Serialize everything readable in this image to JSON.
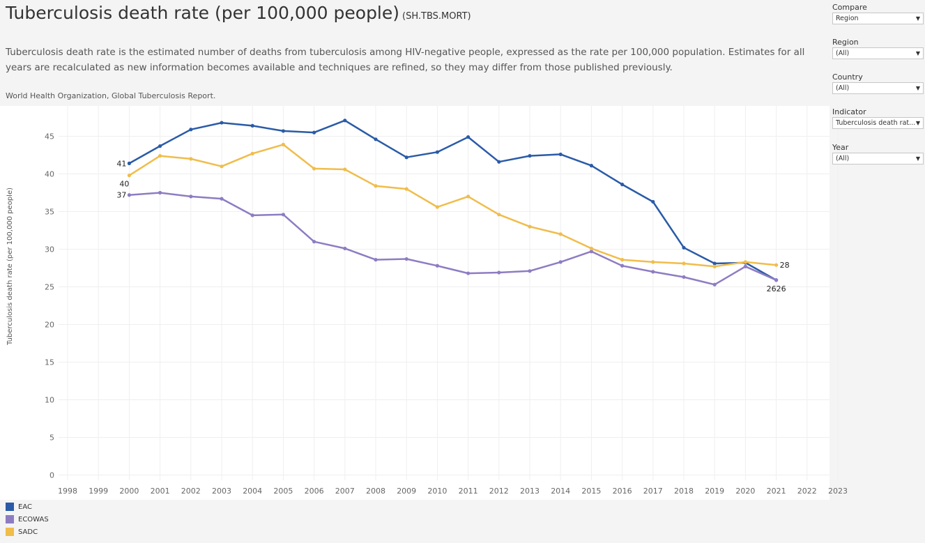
{
  "header": {
    "title": "Tuberculosis death rate (per 100,000 people)",
    "code": "(SH.TBS.MORT)",
    "description": "Tuberculosis death rate is the estimated number of deaths from tuberculosis among HIV-negative people, expressed as the rate per 100,000 population. Estimates for all years are recalculated as new information becomes available and techniques are refined, so they may differ from those published previously.",
    "source": "World Health Organization, Global Tuberculosis Report."
  },
  "filters": [
    {
      "label": "Compare",
      "value": "Region"
    },
    {
      "label": "Region",
      "value": "(All)"
    },
    {
      "label": "Country",
      "value": "(All)"
    },
    {
      "label": "Indicator",
      "value": "Tuberculosis death rat..."
    },
    {
      "label": "Year",
      "value": "(All)"
    }
  ],
  "chart_data": {
    "type": "line",
    "ylabel": "Tuberculosis death rate (per 100,000 people)",
    "xlabel": "",
    "xlim": [
      1998,
      2023
    ],
    "ylim": [
      0,
      48
    ],
    "xticks": [
      1998,
      1999,
      2000,
      2001,
      2002,
      2003,
      2004,
      2005,
      2006,
      2007,
      2008,
      2009,
      2010,
      2011,
      2012,
      2013,
      2014,
      2015,
      2016,
      2017,
      2018,
      2019,
      2020,
      2021,
      2022,
      2023
    ],
    "yticks": [
      0,
      5,
      10,
      15,
      20,
      25,
      30,
      35,
      40,
      45
    ],
    "grid": true,
    "legend": "bottom-left",
    "x": [
      2000,
      2001,
      2002,
      2003,
      2004,
      2005,
      2006,
      2007,
      2008,
      2009,
      2010,
      2011,
      2012,
      2013,
      2014,
      2015,
      2016,
      2017,
      2018,
      2019,
      2020,
      2021
    ],
    "series": [
      {
        "name": "EAC",
        "color": "#2a5ba7",
        "values": [
          41.4,
          43.7,
          45.9,
          46.8,
          46.4,
          45.7,
          45.5,
          47.1,
          44.6,
          42.2,
          42.9,
          44.9,
          41.6,
          42.4,
          42.6,
          41.1,
          38.6,
          36.3,
          30.2,
          28.1,
          28.2,
          25.9
        ],
        "labels": [
          {
            "x": 2000,
            "text": "41",
            "pos": "left"
          },
          {
            "x": 2021,
            "text": "26",
            "pos": "below-left"
          }
        ]
      },
      {
        "name": "ECOWAS",
        "color": "#8e7cc3",
        "values": [
          37.2,
          37.5,
          37.0,
          36.7,
          34.5,
          34.6,
          31.0,
          30.1,
          28.6,
          28.7,
          27.8,
          26.8,
          26.9,
          27.1,
          28.3,
          29.7,
          27.8,
          27.0,
          26.3,
          25.3,
          27.7,
          25.9
        ],
        "labels": [
          {
            "x": 2000,
            "text": "37",
            "pos": "left"
          },
          {
            "x": 2021,
            "text": "26",
            "pos": "below-right"
          }
        ]
      },
      {
        "name": "SADC",
        "color": "#f0bd4b",
        "values": [
          39.8,
          42.4,
          42.0,
          41.0,
          42.7,
          43.9,
          40.7,
          40.6,
          38.4,
          38.0,
          35.6,
          37.0,
          34.6,
          33.0,
          32.0,
          30.1,
          28.6,
          28.3,
          28.1,
          27.7,
          28.3,
          27.9
        ],
        "labels": [
          {
            "x": 2000,
            "text": "40",
            "pos": "below"
          },
          {
            "x": 2021,
            "text": "28",
            "pos": "right"
          }
        ]
      }
    ]
  }
}
